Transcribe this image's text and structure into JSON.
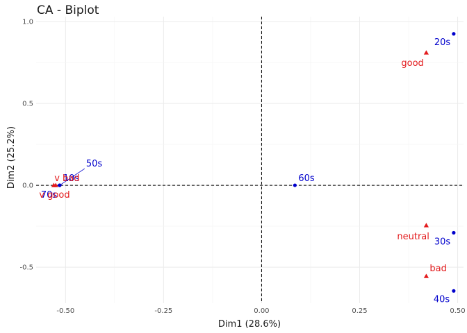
{
  "chart_data": {
    "type": "scatter",
    "title": "CA - Biplot",
    "xlabel": "Dim1 (28.6%)",
    "ylabel": "Dim2 (25.2%)",
    "xlim": [
      -0.575,
      0.515
    ],
    "ylim": [
      -0.72,
      1.03
    ],
    "x_ticks": [
      -0.5,
      -0.25,
      0.0,
      0.25,
      0.5
    ],
    "x_tick_labels": [
      "-0.50",
      "-0.25",
      "0.00",
      "0.25",
      "0.50"
    ],
    "y_ticks": [
      -0.5,
      0.0,
      0.5,
      1.0
    ],
    "y_tick_labels": [
      "-0.5",
      "0.0",
      "0.5",
      "1.0"
    ],
    "grid": true,
    "reference_lines": {
      "x": 0,
      "y": 0,
      "style": "dashed"
    },
    "colors": {
      "rows": "#0000cc",
      "cols": "#e31a1c"
    },
    "series": [
      {
        "marker": "circle",
        "color": "#0000cc",
        "points": [
          {
            "label": "10s",
            "x": -0.515,
            "y": 0.0
          },
          {
            "label": "20s",
            "x": 0.49,
            "y": 0.925
          },
          {
            "label": "30s",
            "x": 0.49,
            "y": -0.29
          },
          {
            "label": "40s",
            "x": 0.49,
            "y": -0.645
          },
          {
            "label": "50s",
            "x": -0.515,
            "y": 0.0
          },
          {
            "label": "60s",
            "x": 0.085,
            "y": 0.0
          },
          {
            "label": "70s",
            "x": -0.515,
            "y": 0.0
          }
        ]
      },
      {
        "marker": "triangle",
        "color": "#e31a1c",
        "points": [
          {
            "label": "good",
            "x": 0.42,
            "y": 0.81
          },
          {
            "label": "neutral",
            "x": 0.42,
            "y": -0.245
          },
          {
            "label": "bad",
            "x": 0.42,
            "y": -0.555
          },
          {
            "label": "v bad",
            "x": -0.525,
            "y": 0.0
          },
          {
            "label": "v good",
            "x": -0.53,
            "y": 0.0
          }
        ]
      }
    ]
  }
}
